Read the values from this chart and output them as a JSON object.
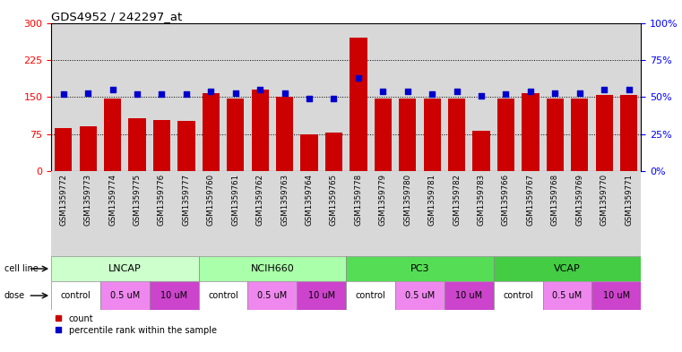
{
  "title": "GDS4952 / 242297_at",
  "samples": [
    "GSM1359772",
    "GSM1359773",
    "GSM1359774",
    "GSM1359775",
    "GSM1359776",
    "GSM1359777",
    "GSM1359760",
    "GSM1359761",
    "GSM1359762",
    "GSM1359763",
    "GSM1359764",
    "GSM1359765",
    "GSM1359778",
    "GSM1359779",
    "GSM1359780",
    "GSM1359781",
    "GSM1359782",
    "GSM1359783",
    "GSM1359766",
    "GSM1359767",
    "GSM1359768",
    "GSM1359769",
    "GSM1359770",
    "GSM1359771"
  ],
  "counts": [
    88,
    90,
    148,
    108,
    103,
    102,
    158,
    148,
    165,
    150,
    75,
    78,
    270,
    148,
    148,
    148,
    148,
    82,
    148,
    158,
    148,
    148,
    155,
    155
  ],
  "percentiles": [
    52,
    53,
    55,
    52,
    52,
    52,
    54,
    53,
    55,
    53,
    49,
    49,
    63,
    54,
    54,
    52,
    54,
    51,
    52,
    54,
    53,
    53,
    55,
    55
  ],
  "bar_color": "#cc0000",
  "dot_color": "#0000cc",
  "ylim_left": [
    0,
    300
  ],
  "ylim_right": [
    0,
    100
  ],
  "yticks_left": [
    0,
    75,
    150,
    225,
    300
  ],
  "yticks_right": [
    0,
    25,
    50,
    75,
    100
  ],
  "ytick_labels_right": [
    "0%",
    "25%",
    "50%",
    "75%",
    "100%"
  ],
  "grid_lines": [
    75,
    150,
    225
  ],
  "cell_line_groups": [
    {
      "label": "LNCAP",
      "start": 0,
      "end": 5,
      "color": "#ccffcc"
    },
    {
      "label": "NCIH660",
      "start": 6,
      "end": 11,
      "color": "#aaffaa"
    },
    {
      "label": "PC3",
      "start": 12,
      "end": 17,
      "color": "#55dd55"
    },
    {
      "label": "VCAP",
      "start": 18,
      "end": 23,
      "color": "#44cc44"
    }
  ],
  "dose_groups": [
    {
      "label": "control",
      "start": 0,
      "end": 1,
      "color": "#ffffff"
    },
    {
      "label": "0.5 uM",
      "start": 2,
      "end": 3,
      "color": "#ee88ee"
    },
    {
      "label": "10 uM",
      "start": 4,
      "end": 5,
      "color": "#cc44cc"
    },
    {
      "label": "control",
      "start": 6,
      "end": 7,
      "color": "#ffffff"
    },
    {
      "label": "0.5 uM",
      "start": 8,
      "end": 9,
      "color": "#ee88ee"
    },
    {
      "label": "10 uM",
      "start": 10,
      "end": 11,
      "color": "#cc44cc"
    },
    {
      "label": "control",
      "start": 12,
      "end": 13,
      "color": "#ffffff"
    },
    {
      "label": "0.5 uM",
      "start": 14,
      "end": 15,
      "color": "#ee88ee"
    },
    {
      "label": "10 uM",
      "start": 16,
      "end": 17,
      "color": "#cc44cc"
    },
    {
      "label": "control",
      "start": 18,
      "end": 19,
      "color": "#ffffff"
    },
    {
      "label": "0.5 uM",
      "start": 20,
      "end": 21,
      "color": "#ee88ee"
    },
    {
      "label": "10 uM",
      "start": 22,
      "end": 23,
      "color": "#cc44cc"
    }
  ],
  "xticklabel_bg": "#d8d8d8"
}
